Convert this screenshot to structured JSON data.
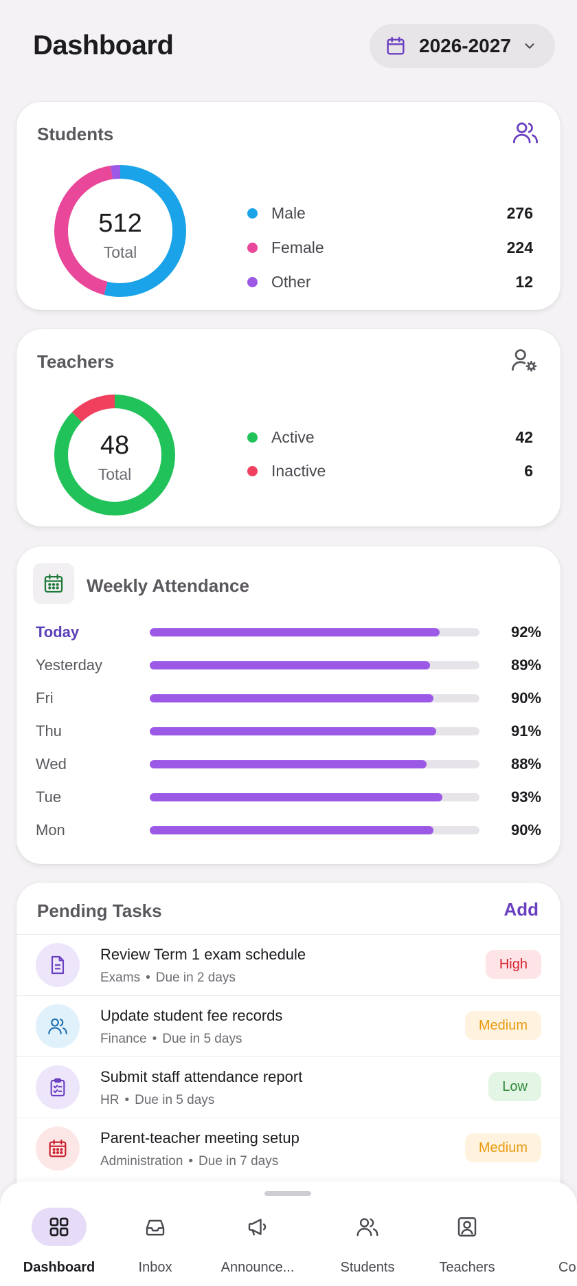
{
  "header": {
    "title": "Dashboard",
    "year": "2026-2027"
  },
  "students": {
    "title": "Students",
    "total": "512",
    "total_label": "Total",
    "legend": [
      {
        "label": "Male",
        "value": "276",
        "color": "#1aa3e8"
      },
      {
        "label": "Female",
        "value": "224",
        "color": "#e8479a"
      },
      {
        "label": "Other",
        "value": "12",
        "color": "#9b59e6"
      }
    ]
  },
  "teachers": {
    "title": "Teachers",
    "total": "48",
    "total_label": "Total",
    "legend": [
      {
        "label": "Active",
        "value": "42",
        "color": "#22c25a"
      },
      {
        "label": "Inactive",
        "value": "6",
        "color": "#f0405e"
      }
    ]
  },
  "attendance": {
    "title": "Weekly Attendance",
    "rows": [
      {
        "day": "Today",
        "pct": "92%",
        "value": 92
      },
      {
        "day": "Yesterday",
        "pct": "89%",
        "value": 89
      },
      {
        "day": "Fri",
        "pct": "90%",
        "value": 90
      },
      {
        "day": "Thu",
        "pct": "91%",
        "value": 91
      },
      {
        "day": "Wed",
        "pct": "88%",
        "value": 88
      },
      {
        "day": "Tue",
        "pct": "93%",
        "value": 93
      },
      {
        "day": "Mon",
        "pct": "90%",
        "value": 90
      }
    ]
  },
  "tasks": {
    "title": "Pending Tasks",
    "add_label": "Add",
    "items": [
      {
        "title": "Review Term 1 exam schedule",
        "category": "Exams",
        "due": "Due in 2 days",
        "priority": "High",
        "icon": "document-icon"
      },
      {
        "title": "Update student fee records",
        "category": "Finance",
        "due": "Due in 5 days",
        "priority": "Medium",
        "icon": "users-icon"
      },
      {
        "title": "Submit staff attendance report",
        "category": "HR",
        "due": "Due in 5 days",
        "priority": "Low",
        "icon": "clipboard-icon"
      },
      {
        "title": "Parent-teacher meeting setup",
        "category": "Administration",
        "due": "Due in 7 days",
        "priority": "Medium",
        "icon": "calendar-icon"
      }
    ],
    "separator": "•"
  },
  "nav": {
    "items": [
      {
        "label": "Dashboard",
        "icon": "grid-icon"
      },
      {
        "label": "Inbox",
        "icon": "inbox-icon"
      },
      {
        "label": "Announce...",
        "icon": "megaphone-icon"
      },
      {
        "label": "Students",
        "icon": "users-icon"
      },
      {
        "label": "Teachers",
        "icon": "teacher-icon"
      },
      {
        "label": "Co",
        "icon": ""
      }
    ]
  },
  "colors": {
    "accent": "#6a3fc0",
    "attendance_bar": "#9b59e6",
    "high_bg": "#fde4e6",
    "high_fg": "#d8202f",
    "medium_bg": "#fff3df",
    "medium_fg": "#e89a10",
    "low_bg": "#e3f5e4",
    "low_fg": "#2e8a3a"
  }
}
